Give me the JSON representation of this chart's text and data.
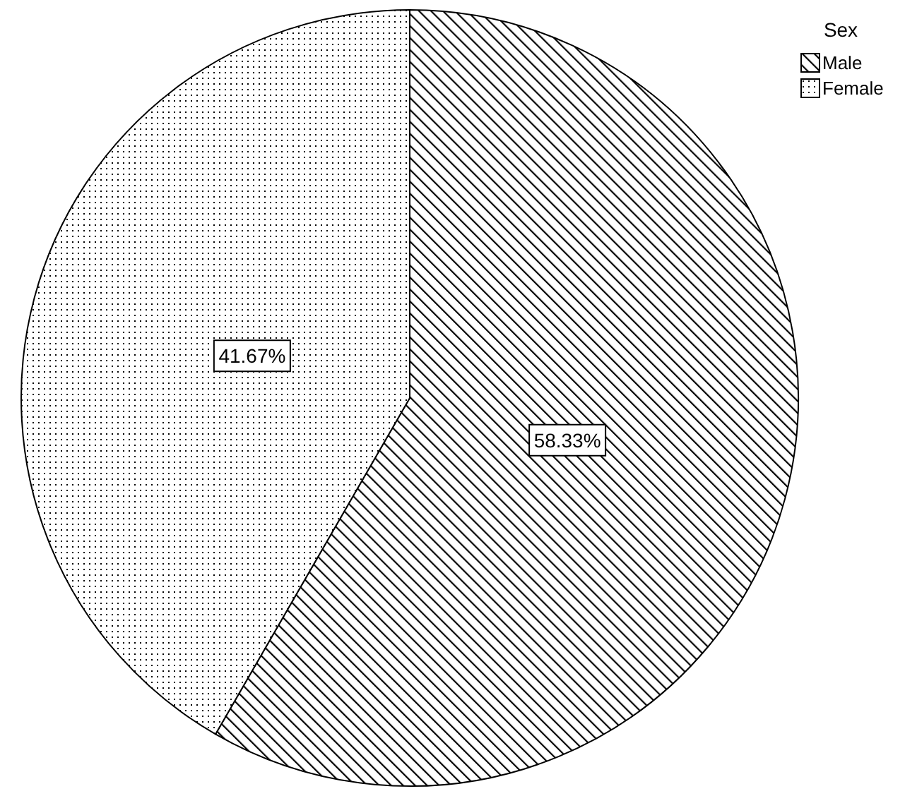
{
  "chart_data": {
    "type": "pie",
    "legend_title": "Sex",
    "categories": [
      "Male",
      "Female"
    ],
    "values": [
      58.33,
      41.67
    ],
    "colors": [
      "#000000",
      "#000000"
    ],
    "value_labels": [
      "58.33%",
      "41.67%"
    ],
    "legend": "top right"
  }
}
